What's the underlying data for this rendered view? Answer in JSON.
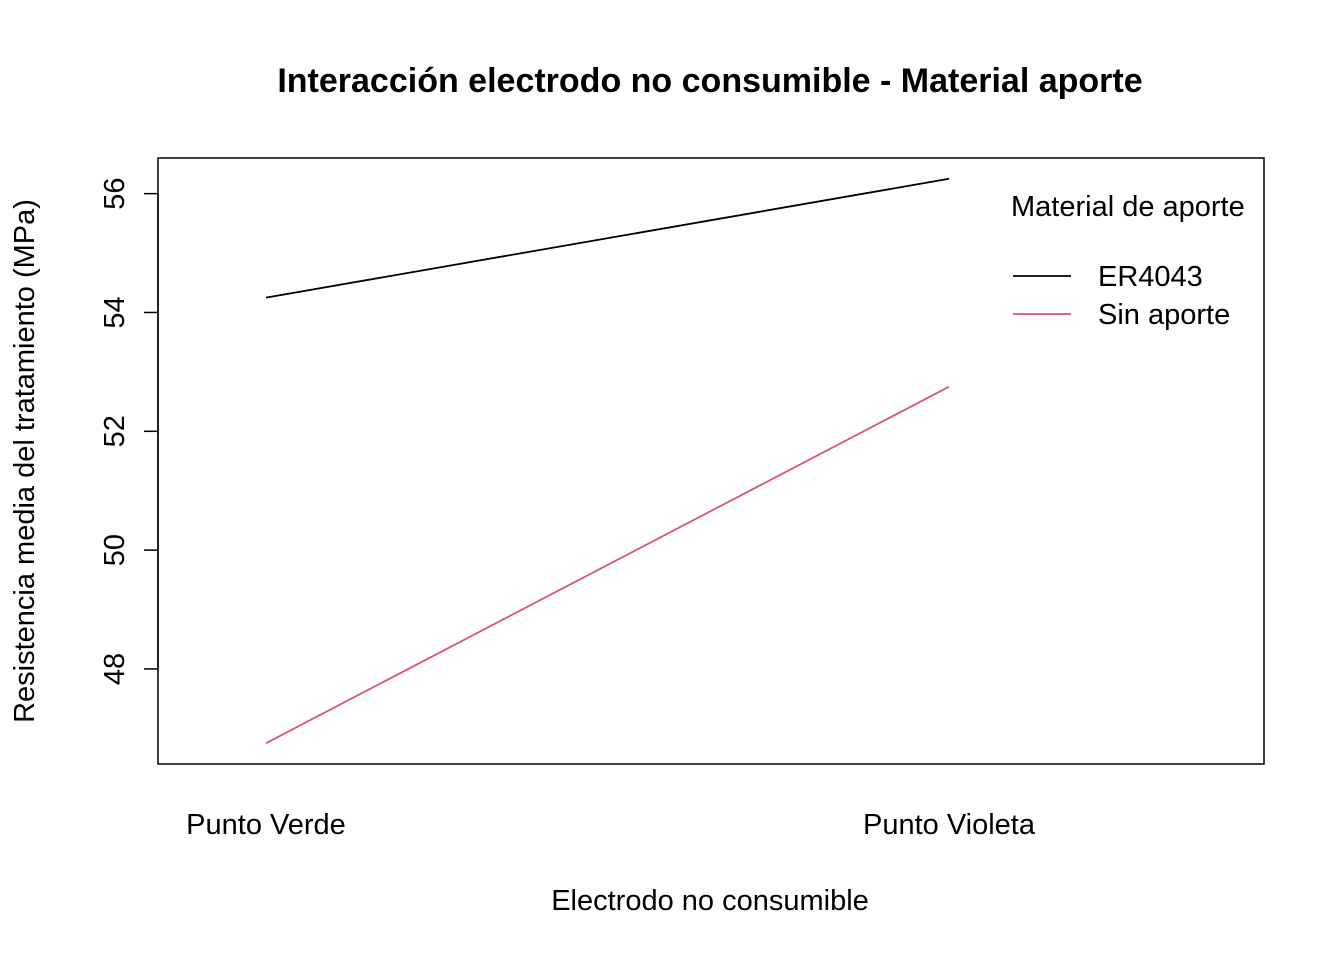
{
  "chart_data": {
    "type": "line",
    "title": "Interacción electrodo no consumible - Material aporte",
    "xlabel": "Electrodo no consumible",
    "ylabel": "Resistencia media del tratamiento (MPa)",
    "categories": [
      "Punto Verde",
      "Punto Violeta"
    ],
    "ylim": [
      46.4,
      56.6
    ],
    "yticks": [
      48,
      50,
      52,
      54,
      56
    ],
    "grid": false,
    "legend_position": "top-right",
    "legend_title": "Material de aporte",
    "series": [
      {
        "name": "ER4043",
        "values": [
          54.25,
          56.25
        ],
        "color": "#000000"
      },
      {
        "name": "Sin aporte",
        "values": [
          46.75,
          52.75
        ],
        "color": "#DF536B"
      }
    ]
  }
}
